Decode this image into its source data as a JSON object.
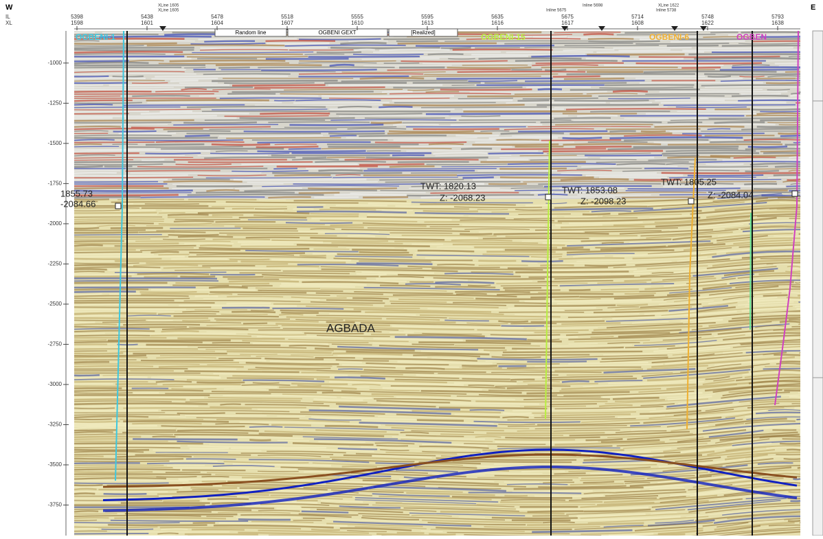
{
  "header": {
    "west": "W",
    "east": "E",
    "il_label": "IL",
    "xl_label": "XL",
    "columns": [
      {
        "il": "5398",
        "xl": "1598"
      },
      {
        "il": "5438",
        "xl": "1601"
      },
      {
        "il": "5478",
        "xl": "1604"
      },
      {
        "il": "5518",
        "xl": "1607"
      },
      {
        "il": "5555",
        "xl": "1610"
      },
      {
        "il": "5595",
        "xl": "1613"
      },
      {
        "il": "5635",
        "xl": "1616"
      },
      {
        "il": "5675",
        "xl": "1617"
      },
      {
        "il": "5714",
        "xl": "1608"
      },
      {
        "il": "5748",
        "xl": "1622"
      },
      {
        "il": "5793",
        "xl": "1638"
      }
    ],
    "line_labels": [
      "XLine 1605",
      "XLine 1605",
      "Inline 5698",
      "Inline 5675",
      "XLine 1622",
      "Inline 5738"
    ],
    "toolbar": [
      "Random line",
      "OGBENI GEXT",
      "[Realized]"
    ]
  },
  "time_axis": {
    "lim": [
      -800,
      -3940
    ],
    "ticks": [
      -1000,
      -1250,
      -1500,
      -1750,
      -2000,
      -2250,
      -2500,
      -2750,
      -3000,
      -3250,
      -3500,
      -3750
    ]
  },
  "wells": [
    {
      "name": "OGBENI-1",
      "color": "#3cc8e0"
    },
    {
      "name": "OGBENI-15",
      "color": "#b8f040"
    },
    {
      "name": "OGBENI-6",
      "color": "#f0b030"
    },
    {
      "name": "OGBEN",
      "color": "#d040c0"
    }
  ],
  "annotations": [
    "1855.73",
    "-2084.66",
    "TWT: 1820.13",
    "Z: -2068.23",
    "TWT: 1853.08",
    "Z: -2098.23",
    "TWT: 1805.25",
    "Z: -2084.04"
  ],
  "formation": "AGBADA"
}
